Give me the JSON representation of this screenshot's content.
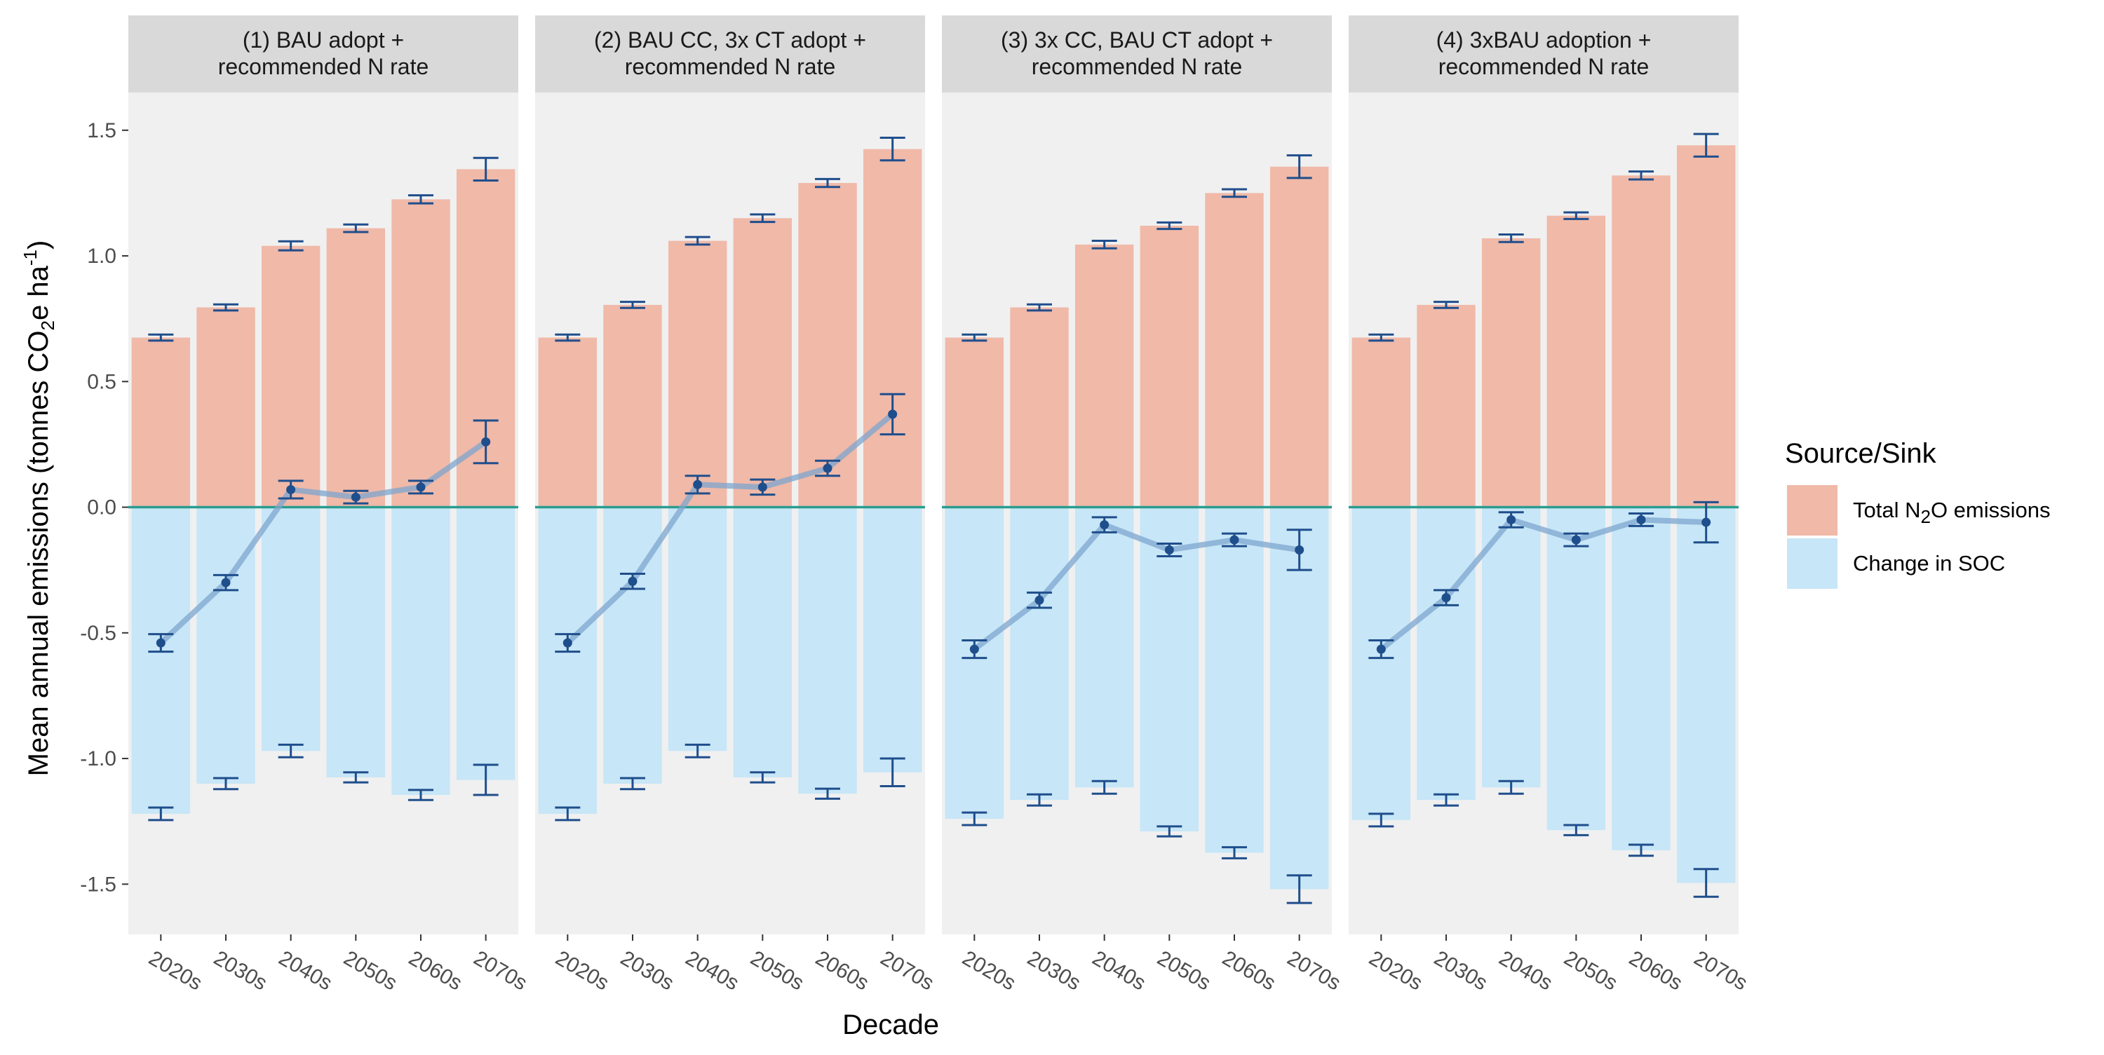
{
  "chart_data": {
    "type": "bar",
    "xlabel": "Decade",
    "ylabel": "Mean annual emissions (tonnes CO2e ha-1)",
    "ylabel_parts": [
      "Mean annual emissions (tonnes CO",
      "2",
      "e ha",
      "-1",
      ")"
    ],
    "ylim": [
      -1.7,
      1.65
    ],
    "yticks": [
      1.5,
      1.0,
      0.5,
      0.0,
      -0.5,
      -1.0,
      -1.5
    ],
    "ytick_labels": [
      "1.5",
      "1.0",
      "0.5",
      "0.0",
      "-0.5",
      "-1.0",
      "-1.5"
    ],
    "categories": [
      "2020s",
      "2030s",
      "2040s",
      "2050s",
      "2060s",
      "2070s"
    ],
    "legend": {
      "title": "Source/Sink",
      "position": "right",
      "items": [
        {
          "label_parts": [
            "Total N",
            "2",
            "O emissions"
          ],
          "color": "#f0b9a8"
        },
        {
          "label_parts": [
            "Change in SOC"
          ],
          "color": "#c7e6f7"
        }
      ]
    },
    "colors": {
      "n2o": "#f0b9a8",
      "soc": "#c7e6f7",
      "errorbar": "#1f4e8c",
      "net_line": "#7ea6cf",
      "net_point": "#1f4e8c",
      "zero_line": "#2a9d8f",
      "panel_bg": "#f0f0f0",
      "strip_bg": "#d9d9d9"
    },
    "panels": [
      {
        "title_lines": [
          "(1) BAU adopt +",
          "recommended N rate"
        ],
        "n2o": [
          0.675,
          0.795,
          1.04,
          1.11,
          1.225,
          1.345
        ],
        "n2o_err": [
          0.012,
          0.012,
          0.018,
          0.015,
          0.016,
          0.045
        ],
        "soc": [
          -1.22,
          -1.1,
          -0.97,
          -1.075,
          -1.145,
          -1.085
        ],
        "soc_err": [
          0.025,
          0.022,
          0.025,
          0.02,
          0.02,
          0.06
        ],
        "net": [
          -0.54,
          -0.3,
          0.07,
          0.04,
          0.08,
          0.26
        ],
        "net_err": [
          0.035,
          0.03,
          0.035,
          0.025,
          0.025,
          0.085
        ]
      },
      {
        "title_lines": [
          "(2) BAU CC, 3x CT adopt +",
          "recommended N rate"
        ],
        "n2o": [
          0.675,
          0.805,
          1.06,
          1.15,
          1.29,
          1.425
        ],
        "n2o_err": [
          0.012,
          0.012,
          0.015,
          0.015,
          0.016,
          0.045
        ],
        "soc": [
          -1.22,
          -1.1,
          -0.97,
          -1.075,
          -1.14,
          -1.055
        ],
        "soc_err": [
          0.025,
          0.022,
          0.025,
          0.02,
          0.02,
          0.055
        ],
        "net": [
          -0.54,
          -0.295,
          0.09,
          0.08,
          0.155,
          0.37
        ],
        "net_err": [
          0.035,
          0.03,
          0.035,
          0.03,
          0.03,
          0.08
        ]
      },
      {
        "title_lines": [
          "(3) 3x CC, BAU CT adopt +",
          "recommended N rate"
        ],
        "n2o": [
          0.675,
          0.795,
          1.045,
          1.12,
          1.25,
          1.355
        ],
        "n2o_err": [
          0.012,
          0.012,
          0.015,
          0.013,
          0.015,
          0.045
        ],
        "soc": [
          -1.24,
          -1.165,
          -1.115,
          -1.29,
          -1.375,
          -1.52
        ],
        "soc_err": [
          0.025,
          0.022,
          0.025,
          0.02,
          0.022,
          0.055
        ],
        "net": [
          -0.565,
          -0.37,
          -0.07,
          -0.17,
          -0.13,
          -0.17
        ],
        "net_err": [
          0.035,
          0.03,
          0.03,
          0.025,
          0.025,
          0.08
        ]
      },
      {
        "title_lines": [
          "(4) 3xBAU adoption +",
          "recommended N rate"
        ],
        "n2o": [
          0.675,
          0.805,
          1.07,
          1.16,
          1.32,
          1.44
        ],
        "n2o_err": [
          0.012,
          0.012,
          0.015,
          0.013,
          0.016,
          0.045
        ],
        "soc": [
          -1.245,
          -1.165,
          -1.115,
          -1.285,
          -1.365,
          -1.495
        ],
        "soc_err": [
          0.025,
          0.022,
          0.025,
          0.02,
          0.022,
          0.055
        ],
        "net": [
          -0.565,
          -0.36,
          -0.05,
          -0.13,
          -0.05,
          -0.06
        ],
        "net_err": [
          0.035,
          0.03,
          0.03,
          0.025,
          0.025,
          0.08
        ]
      }
    ]
  }
}
